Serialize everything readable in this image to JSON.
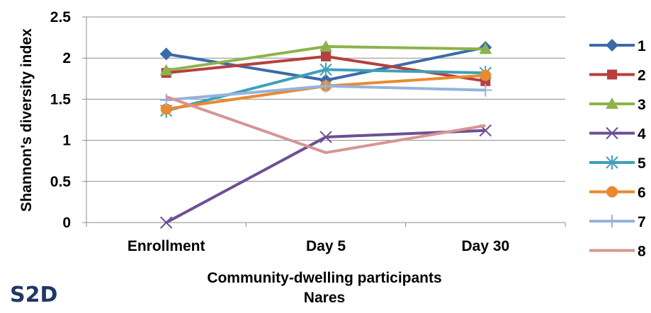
{
  "panel_label": "S2D",
  "chart_data": {
    "type": "line",
    "title": "",
    "xlabel": [
      "Community-dwelling participants",
      "Nares"
    ],
    "ylabel": "Shannon's diversity index",
    "categories": [
      "Enrollment",
      "Day 5",
      "Day 30"
    ],
    "ylim": [
      0,
      2.5
    ],
    "yticks": [
      "0",
      "0.5",
      "1",
      "1.5",
      "2",
      "2.5"
    ],
    "grid": true,
    "legend_position": "right",
    "series": [
      {
        "name": "1",
        "values": [
          2.05,
          1.73,
          2.13
        ],
        "color": "#3c6aa8",
        "marker": "diamond"
      },
      {
        "name": "2",
        "values": [
          1.82,
          2.02,
          1.72
        ],
        "color": "#b5403d",
        "marker": "square"
      },
      {
        "name": "3",
        "values": [
          1.85,
          2.14,
          2.11
        ],
        "color": "#8cb34b",
        "marker": "triangle"
      },
      {
        "name": "4",
        "values": [
          0.0,
          1.04,
          1.12
        ],
        "color": "#6d4f93",
        "marker": "x"
      },
      {
        "name": "5",
        "values": [
          1.36,
          1.86,
          1.82
        ],
        "color": "#3ea0b7",
        "marker": "star"
      },
      {
        "name": "6",
        "values": [
          1.38,
          1.66,
          1.79
        ],
        "color": "#e98a2f",
        "marker": "circle"
      },
      {
        "name": "7",
        "values": [
          1.49,
          1.66,
          1.61
        ],
        "color": "#94b3dd",
        "marker": "plus"
      },
      {
        "name": "8",
        "values": [
          1.53,
          0.85,
          1.18
        ],
        "color": "#d79593",
        "marker": "none"
      }
    ]
  }
}
